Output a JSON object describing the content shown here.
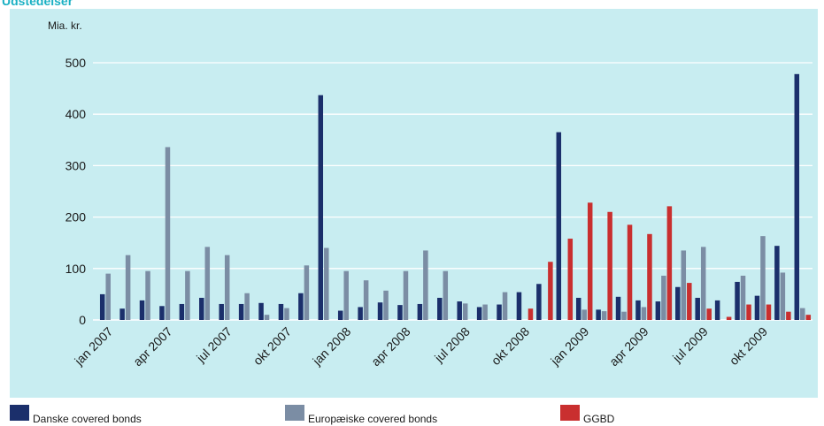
{
  "title": "Udstedelser",
  "chart_data": {
    "type": "bar",
    "ylabel": "Mia. kr.",
    "ylim": [
      0,
      500
    ],
    "yticks": [
      0,
      100,
      200,
      300,
      400,
      500
    ],
    "grid": true,
    "legend_position": "bottom",
    "categories": [
      "jan 2007",
      "feb 2007",
      "mar 2007",
      "apr 2007",
      "maj 2007",
      "jun 2007",
      "jul 2007",
      "aug 2007",
      "sep 2007",
      "okt 2007",
      "nov 2007",
      "dec 2007",
      "jan 2008",
      "feb 2008",
      "mar 2008",
      "apr 2008",
      "maj 2008",
      "jun 2008",
      "jul 2008",
      "aug 2008",
      "sep 2008",
      "okt 2008",
      "nov 2008",
      "dec 2008",
      "jan 2009",
      "feb 2009",
      "mar 2009",
      "apr 2009",
      "maj 2009",
      "jun 2009",
      "jul 2009",
      "aug 2009",
      "sep 2009",
      "okt 2009",
      "nov 2009",
      "dec 2009"
    ],
    "xticklabels": [
      {
        "index": 0,
        "label": "jan 2007"
      },
      {
        "index": 3,
        "label": "apr 2007"
      },
      {
        "index": 6,
        "label": "jul 2007"
      },
      {
        "index": 9,
        "label": "okt 2007"
      },
      {
        "index": 12,
        "label": "jan 2008"
      },
      {
        "index": 15,
        "label": "apr 2008"
      },
      {
        "index": 18,
        "label": "jul 2008"
      },
      {
        "index": 21,
        "label": "okt 2008"
      },
      {
        "index": 24,
        "label": "jan 2009"
      },
      {
        "index": 27,
        "label": "apr 2009"
      },
      {
        "index": 30,
        "label": "jul 2009"
      },
      {
        "index": 33,
        "label": "okt 2009"
      }
    ],
    "series": [
      {
        "name": "Danske covered bonds",
        "color": "#1b2f6b",
        "values": [
          50,
          22,
          38,
          27,
          31,
          43,
          31,
          31,
          33,
          31,
          52,
          437,
          18,
          25,
          34,
          29,
          31,
          43,
          36,
          25,
          30,
          54,
          70,
          365,
          43,
          20,
          45,
          38,
          36,
          64,
          43,
          38,
          74,
          47,
          144,
          478
        ]
      },
      {
        "name": "Europæiske covered bonds",
        "color": "#7b8da4",
        "values": [
          90,
          126,
          95,
          336,
          95,
          142,
          126,
          52,
          10,
          23,
          106,
          140,
          95,
          77,
          57,
          95,
          135,
          95,
          32,
          30,
          54,
          0,
          0,
          0,
          20,
          17,
          16,
          25,
          86,
          135,
          142,
          0,
          86,
          163,
          92,
          23
        ]
      },
      {
        "name": "GGBD",
        "color": "#c92f2f",
        "values": [
          0,
          0,
          0,
          0,
          0,
          0,
          0,
          0,
          0,
          0,
          0,
          0,
          0,
          0,
          0,
          0,
          0,
          0,
          0,
          0,
          0,
          22,
          113,
          158,
          228,
          210,
          185,
          167,
          221,
          72,
          22,
          6,
          30,
          30,
          16,
          10
        ]
      }
    ]
  }
}
